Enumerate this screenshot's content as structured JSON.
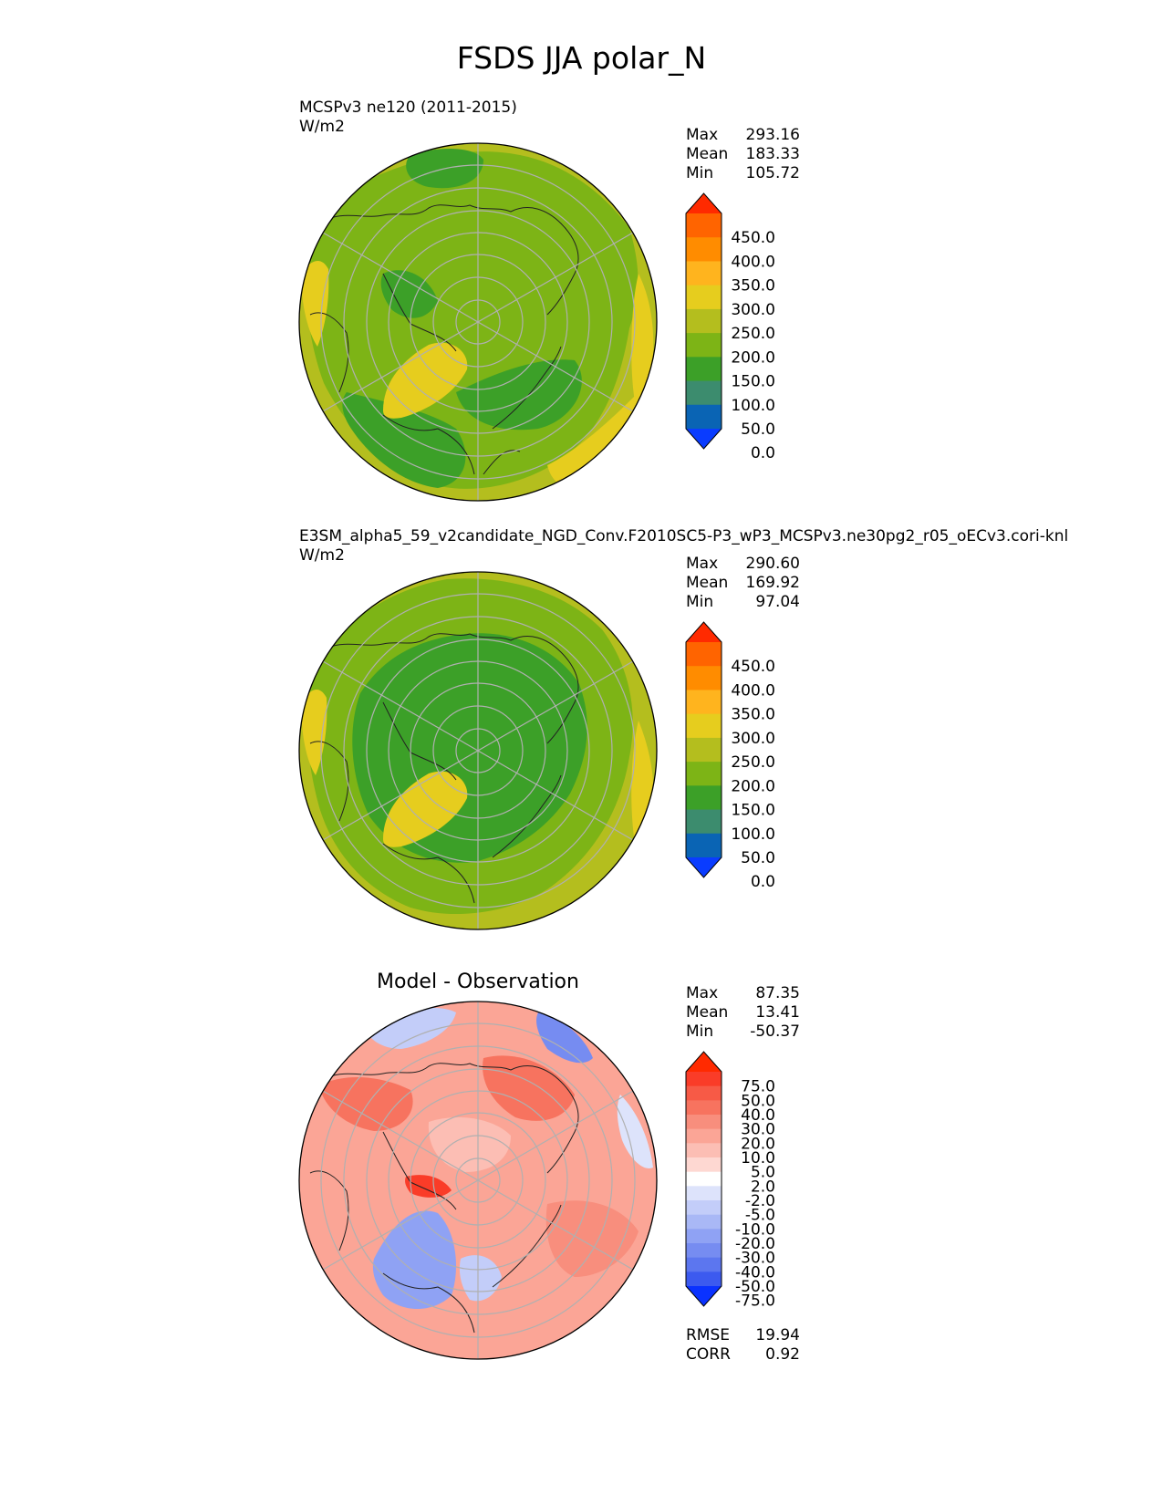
{
  "title": "FSDS JJA polar_N",
  "panels": [
    {
      "name": "test",
      "label_line1": "MCSPv3 ne120 (2011-2015)",
      "label_line2": "W/m2",
      "center_title": "",
      "stats": {
        "max_label": "Max",
        "max": "293.16",
        "mean_label": "Mean",
        "mean": "183.33",
        "min_label": "Min",
        "min": "105.72"
      },
      "colorbar": {
        "labels": [
          "450.0",
          "400.0",
          "350.0",
          "300.0",
          "250.0",
          "200.0",
          "150.0",
          "100.0",
          "50.0",
          "0.0"
        ],
        "colors": [
          "#ff2a00",
          "#ff6400",
          "#ff8c00",
          "#ffb41e",
          "#e6cd1e",
          "#b4be1e",
          "#7db416",
          "#3ca028",
          "#3c8c6e",
          "#0a64b4",
          "#0a3cff"
        ]
      }
    },
    {
      "name": "reference",
      "label_line1": "E3SM_alpha5_59_v2candidate_NGD_Conv.F2010SC5-P3_wP3_MCSPv3.ne30pg2_r05_oECv3.cori-knl",
      "label_line2": "W/m2",
      "center_title": "",
      "stats": {
        "max_label": "Max",
        "max": "290.60",
        "mean_label": "Mean",
        "mean": "169.92",
        "min_label": "Min",
        "min": "97.04"
      },
      "colorbar": {
        "labels": [
          "450.0",
          "400.0",
          "350.0",
          "300.0",
          "250.0",
          "200.0",
          "150.0",
          "100.0",
          "50.0",
          "0.0"
        ],
        "colors": [
          "#ff2a00",
          "#ff6400",
          "#ff8c00",
          "#ffb41e",
          "#e6cd1e",
          "#b4be1e",
          "#7db416",
          "#3ca028",
          "#3c8c6e",
          "#0a64b4",
          "#0a3cff"
        ]
      }
    },
    {
      "name": "difference",
      "label_line1": "",
      "label_line2": "",
      "center_title": "Model - Observation",
      "stats": {
        "max_label": "Max",
        "max": "87.35",
        "mean_label": "Mean",
        "mean": "13.41",
        "min_label": "Min",
        "min": "-50.37"
      },
      "extra_stats": {
        "rmse_label": "RMSE",
        "rmse": "19.94",
        "corr_label": "CORR",
        "corr": "0.92"
      },
      "colorbar": {
        "labels": [
          "75.0",
          "50.0",
          "40.0",
          "30.0",
          "20.0",
          "10.0",
          "5.0",
          "2.0",
          "-2.0",
          "-5.0",
          "-10.0",
          "-20.0",
          "-30.0",
          "-40.0",
          "-50.0",
          "-75.0"
        ],
        "colors": [
          "#ff2a00",
          "#fa3c28",
          "#f75a46",
          "#f7735f",
          "#f88e7d",
          "#fba596",
          "#fcbeb4",
          "#fed8d2",
          "#ffffff",
          "#dde3fb",
          "#c3cdf9",
          "#a9b8f6",
          "#8fa2f4",
          "#768cf1",
          "#5c76ef",
          "#3c5aef",
          "#0a32ff"
        ]
      }
    }
  ],
  "chart_data": [
    {
      "type": "heatmap",
      "projection": "north-polar-stereographic",
      "title": "MCSPv3 ne120 (2011-2015)",
      "units": "W/m2",
      "variable": "FSDS",
      "season": "JJA",
      "max": 293.16,
      "mean": 183.33,
      "min": 105.72,
      "levels": [
        0,
        50,
        100,
        150,
        200,
        250,
        300,
        350,
        400,
        450
      ]
    },
    {
      "type": "heatmap",
      "projection": "north-polar-stereographic",
      "title": "E3SM_alpha5_59_v2candidate_NGD_Conv.F2010SC5-P3_wP3_MCSPv3.ne30pg2_r05_oECv3.cori-knl",
      "units": "W/m2",
      "variable": "FSDS",
      "season": "JJA",
      "max": 290.6,
      "mean": 169.92,
      "min": 97.04,
      "levels": [
        0,
        50,
        100,
        150,
        200,
        250,
        300,
        350,
        400,
        450
      ]
    },
    {
      "type": "heatmap",
      "projection": "north-polar-stereographic",
      "title": "Model - Observation",
      "max": 87.35,
      "mean": 13.41,
      "min": -50.37,
      "rmse": 19.94,
      "corr": 0.92,
      "levels": [
        -75,
        -50,
        -40,
        -30,
        -20,
        -10,
        -5,
        -2,
        2,
        5,
        10,
        20,
        30,
        40,
        50,
        75
      ]
    }
  ]
}
